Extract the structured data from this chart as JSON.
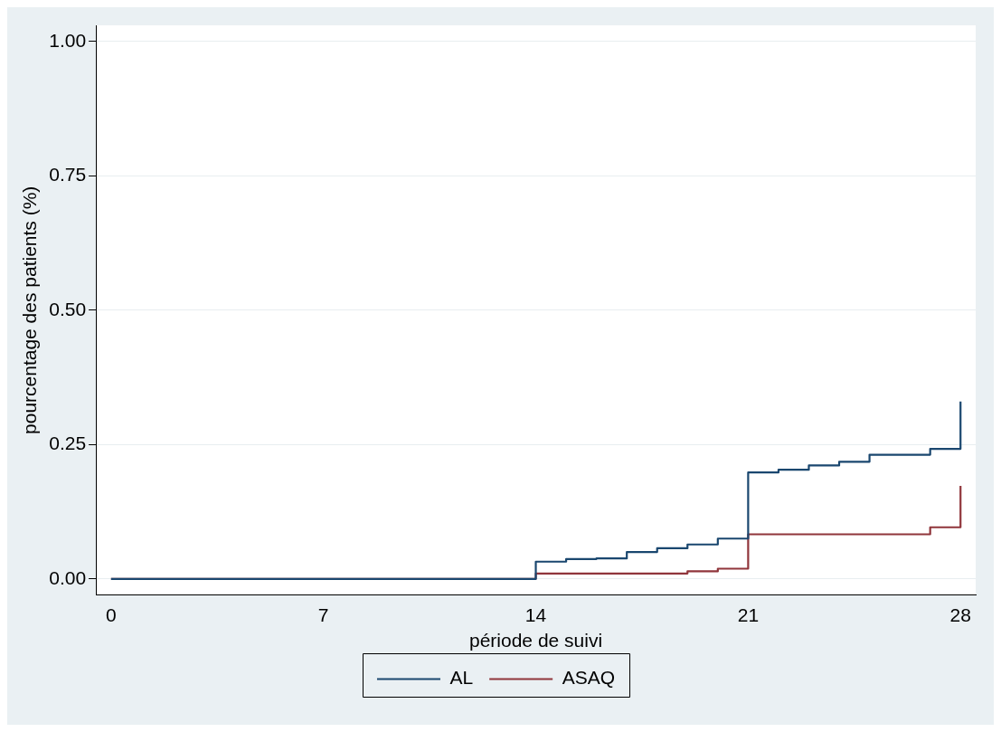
{
  "chart_data": {
    "type": "step",
    "xlabel": "période de suivi",
    "ylabel": "pourcentage des patients (%)",
    "xlim": [
      -0.5,
      28.5
    ],
    "xticks": [
      0,
      7,
      14,
      21,
      28
    ],
    "ylim": [
      -0.03,
      1.03
    ],
    "yticks": [
      {
        "value": 0,
        "label": "0.00"
      },
      {
        "value": 0.25,
        "label": "0.25"
      },
      {
        "value": 0.5,
        "label": "0.50"
      },
      {
        "value": 0.75,
        "label": "0.75"
      },
      {
        "value": 1,
        "label": "1.00"
      }
    ],
    "grid": "y",
    "legend": "bottom",
    "line_style": "solid",
    "marker": "none",
    "series": [
      {
        "name": "AL",
        "color": "#1a476f",
        "x": [
          0,
          14,
          15,
          16,
          17,
          18,
          19,
          20,
          21,
          22,
          23,
          24,
          25,
          27,
          28
        ],
        "values": [
          0,
          0.032,
          0.037,
          0.038,
          0.05,
          0.057,
          0.064,
          0.075,
          0.198,
          0.203,
          0.211,
          0.218,
          0.231,
          0.242,
          0.33
        ]
      },
      {
        "name": "ASAQ",
        "color": "#90353b",
        "x": [
          0,
          14,
          19,
          20,
          21,
          27,
          28
        ],
        "values": [
          0,
          0.01,
          0.014,
          0.019,
          0.083,
          0.096,
          0.173
        ]
      }
    ]
  }
}
